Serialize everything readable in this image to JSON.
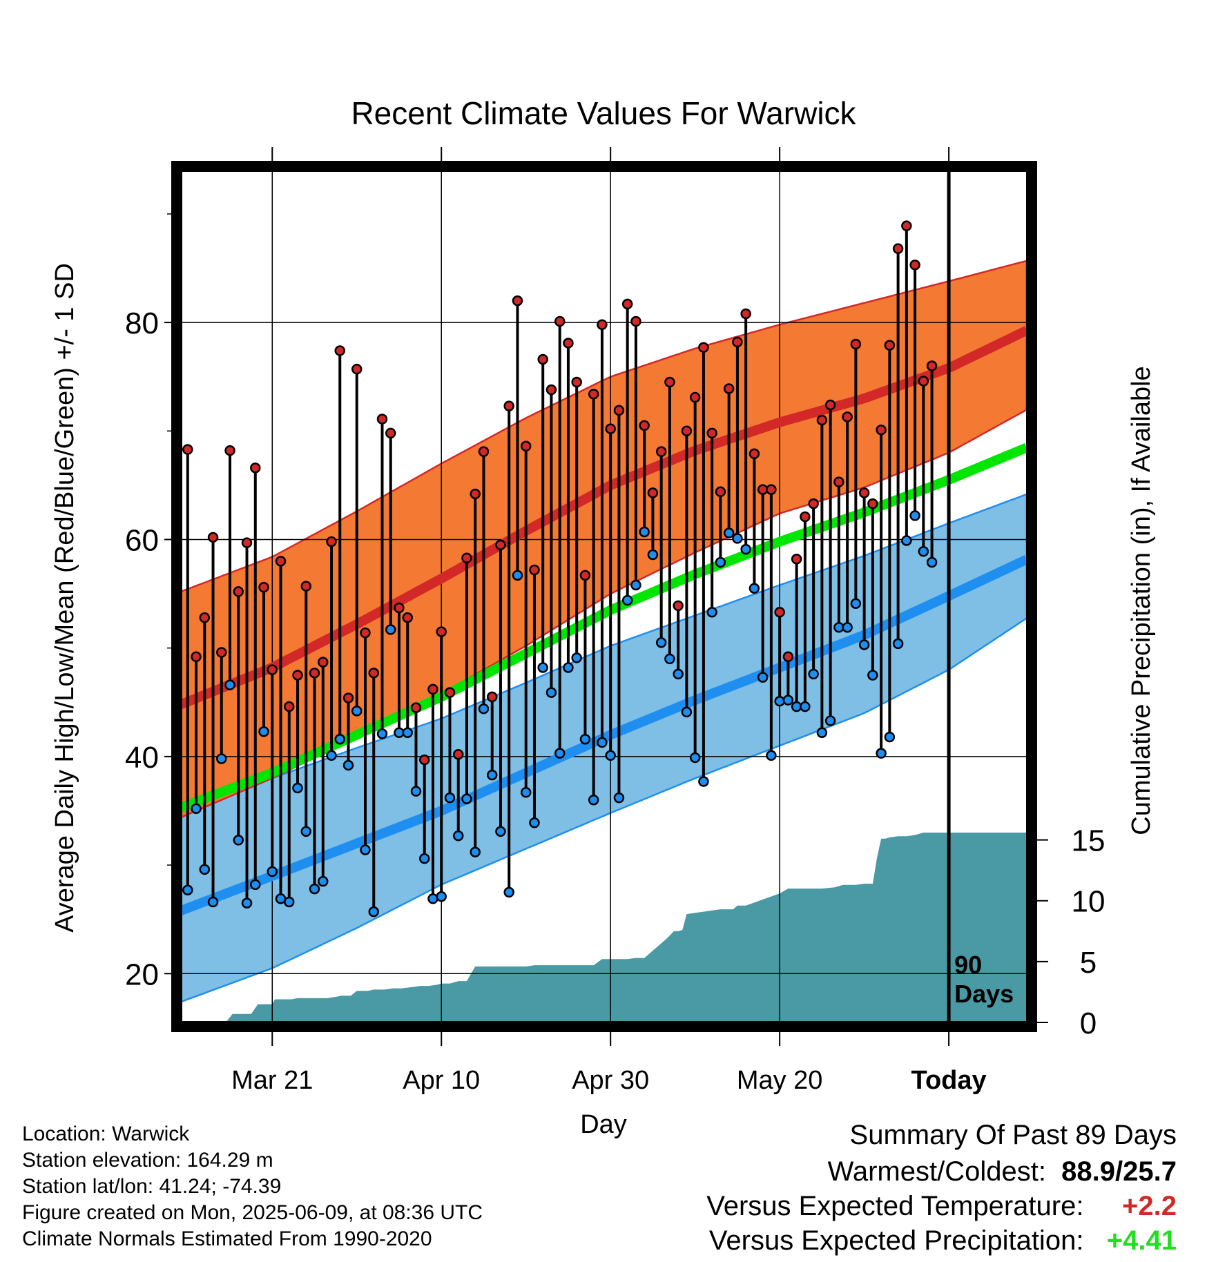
{
  "chart_data": {
    "type": "line",
    "title": "Recent Climate Values For Warwick",
    "xlabel": "Day",
    "ylabel": "Average Daily High/Low/Mean (Red/Blue/Green) +/- 1 SD",
    "y2label": "Cumulative Precipitation (in), If Available",
    "xticks": [
      {
        "day": 10,
        "label": "Mar 21"
      },
      {
        "day": 30,
        "label": "Apr 10"
      },
      {
        "day": 50,
        "label": "Apr 30"
      },
      {
        "day": 70,
        "label": "May 20"
      },
      {
        "day": 90,
        "label": "Today"
      }
    ],
    "day_axis_start": "2025-03-11",
    "xlim": [
      -0.8,
      99.3
    ],
    "ylim": [
      15.5,
      94
    ],
    "yticks": [
      20,
      40,
      60,
      80
    ],
    "y2lim": [
      0,
      70
    ],
    "y2ticks": [
      0,
      5,
      10,
      15
    ],
    "marker_label": "90 Days",
    "normals": {
      "day": [
        -0.8,
        10,
        20,
        30,
        40,
        50,
        60,
        70,
        80,
        90,
        99.3
      ],
      "high_mean": [
        44.8,
        48.2,
        52.2,
        56.4,
        60.8,
        65.0,
        68.2,
        70.8,
        73.0,
        75.8,
        79.3
      ],
      "high_upper": [
        55.2,
        58.4,
        62.6,
        67.0,
        71.2,
        75.0,
        77.6,
        79.8,
        81.8,
        83.8,
        85.7
      ],
      "high_lower": [
        34.4,
        38.0,
        41.8,
        45.8,
        50.2,
        55.0,
        58.8,
        62.4,
        64.8,
        68.0,
        72.0
      ],
      "mean": [
        35.3,
        38.5,
        42.0,
        45.5,
        49.5,
        53.5,
        56.8,
        59.8,
        62.5,
        65.5,
        68.5
      ],
      "low_mean": [
        25.8,
        29.0,
        32.0,
        35.0,
        38.5,
        42.0,
        45.2,
        48.2,
        51.2,
        54.8,
        58.2
      ],
      "low_upper": [
        35.5,
        38.0,
        40.8,
        43.5,
        46.8,
        50.2,
        53.0,
        55.8,
        58.5,
        61.5,
        64.2
      ],
      "low_lower": [
        17.4,
        20.5,
        24.2,
        28.2,
        31.5,
        34.8,
        38.0,
        41.0,
        44.0,
        48.0,
        52.8
      ]
    },
    "daily": {
      "day": [
        0,
        1,
        2,
        3,
        4,
        5,
        6,
        7,
        8,
        9,
        10,
        11,
        12,
        13,
        14,
        15,
        16,
        17,
        18,
        19,
        20,
        21,
        22,
        23,
        24,
        25,
        26,
        27,
        28,
        29,
        30,
        31,
        32,
        33,
        34,
        35,
        36,
        37,
        38,
        39,
        40,
        41,
        42,
        43,
        44,
        45,
        46,
        47,
        48,
        49,
        50,
        51,
        52,
        53,
        54,
        55,
        56,
        57,
        58,
        59,
        60,
        61,
        62,
        63,
        64,
        65,
        66,
        67,
        68,
        69,
        70,
        71,
        72,
        73,
        74,
        75,
        76,
        77,
        78,
        79,
        80,
        81,
        82,
        83,
        84,
        85,
        86,
        87,
        88,
        89
      ],
      "high": [
        68.3,
        49.2,
        52.8,
        60.2,
        49.6,
        68.2,
        55.2,
        59.7,
        66.6,
        55.6,
        48.0,
        58.0,
        44.6,
        47.5,
        55.7,
        47.7,
        48.7,
        59.8,
        77.4,
        45.4,
        75.7,
        51.4,
        47.7,
        71.1,
        69.8,
        53.7,
        52.8,
        44.5,
        39.7,
        46.2,
        51.5,
        45.9,
        40.2,
        58.3,
        64.2,
        68.1,
        45.5,
        59.5,
        72.3,
        82.0,
        68.6,
        57.2,
        76.6,
        73.8,
        80.1,
        78.1,
        74.5,
        56.7,
        73.4,
        79.8,
        70.2,
        71.9,
        81.7,
        80.1,
        70.5,
        64.3,
        68.1,
        74.5,
        53.9,
        70.0,
        73.1,
        77.7,
        69.8,
        64.4,
        73.9,
        78.2,
        80.8,
        67.9,
        64.6,
        64.6,
        53.3,
        49.2,
        58.2,
        62.1,
        63.3,
        71.0,
        72.4,
        65.3,
        71.3,
        78.0,
        64.3,
        63.3,
        70.1,
        77.9,
        86.8,
        88.9,
        85.3,
        74.6,
        76.0,
        null
      ],
      "low": [
        27.7,
        35.2,
        29.6,
        26.6,
        39.8,
        46.6,
        32.3,
        26.5,
        28.2,
        42.3,
        29.4,
        26.9,
        26.6,
        37.1,
        33.1,
        27.8,
        28.5,
        40.1,
        41.6,
        39.2,
        44.2,
        31.4,
        25.7,
        42.1,
        51.7,
        42.2,
        42.2,
        36.8,
        30.6,
        26.9,
        27.1,
        36.2,
        32.7,
        36.1,
        31.2,
        44.4,
        38.3,
        33.1,
        27.5,
        56.7,
        36.7,
        33.9,
        48.2,
        45.9,
        40.3,
        48.2,
        49.1,
        41.6,
        36.0,
        41.3,
        40.1,
        36.2,
        54.4,
        55.8,
        60.7,
        58.6,
        50.5,
        49.0,
        47.6,
        44.1,
        39.9,
        37.7,
        53.3,
        57.9,
        60.6,
        60.1,
        59.1,
        55.5,
        47.3,
        40.1,
        45.1,
        45.2,
        44.6,
        44.6,
        47.6,
        42.2,
        43.3,
        51.9,
        51.9,
        54.1,
        50.3,
        47.5,
        40.3,
        41.8,
        50.4,
        59.9,
        62.2,
        58.9,
        57.9,
        null
      ]
    },
    "precip": {
      "day": [
        4.5,
        5.3,
        6.0,
        6.6,
        7.5,
        8.3,
        9.0,
        10.0,
        10.3,
        11.3,
        12.3,
        13.0,
        14.5,
        15.5,
        16.5,
        17.5,
        18.2,
        19.3,
        20.0,
        20.8,
        21.3,
        22.0,
        23.3,
        24.3,
        25.3,
        26.5,
        27.5,
        28.5,
        29.5,
        30.0,
        31.0,
        32.0,
        33.0,
        34.0,
        40.0,
        41.0,
        48.0,
        49.0,
        52.0,
        53.0,
        54.0,
        55.0,
        56.0,
        56.8,
        57.5,
        58.0,
        58.5,
        59.0,
        60.0,
        61.0,
        62.0,
        63.0,
        64.5,
        65.0,
        66.0,
        70.0,
        71.0,
        72.0,
        73.0,
        74.0,
        75.0,
        76.5,
        77.5,
        78.5,
        79.0,
        80.0,
        81.0,
        81.5,
        82.0,
        82.5,
        83.0,
        84.0,
        85.0,
        86.0,
        87.0,
        87.5,
        88.0,
        89.0,
        99.3
      ],
      "cum": [
        0,
        0.7,
        0.7,
        0.7,
        0.7,
        1.5,
        1.5,
        1.5,
        1.9,
        1.9,
        1.9,
        2.0,
        2.0,
        2.0,
        2.0,
        2.1,
        2.2,
        2.2,
        2.6,
        2.6,
        2.6,
        2.7,
        2.7,
        2.8,
        2.8,
        2.9,
        3.0,
        3.0,
        3.1,
        3.2,
        3.2,
        3.4,
        3.4,
        4.6,
        4.6,
        4.7,
        4.7,
        5.2,
        5.2,
        5.3,
        5.3,
        5.9,
        6.5,
        7.0,
        7.5,
        7.5,
        7.6,
        8.9,
        9.0,
        9.1,
        9.2,
        9.3,
        9.3,
        9.6,
        9.6,
        10.6,
        11.0,
        11.0,
        11.0,
        11.0,
        11.0,
        11.1,
        11.3,
        11.3,
        11.3,
        11.4,
        11.4,
        13.5,
        15.1,
        15.1,
        15.2,
        15.3,
        15.3,
        15.4,
        15.6,
        15.6,
        15.6,
        15.6,
        15.6
      ]
    },
    "colors": {
      "high_band": "#f47a33",
      "high_mean": "#d32828",
      "low_band": "#7fbfe6",
      "low_mean": "#1e8ff0",
      "mean": "#00e600",
      "precip": "#4a9aa5",
      "high_dot": "#d32828",
      "low_dot": "#1e8ff0"
    },
    "grid": true
  },
  "info": {
    "location": "Location: Warwick",
    "elevation": "Station elevation: 164.29 m",
    "latlon": "Station lat/lon: 41.24; -74.39",
    "created": "Figure created on Mon, 2025-06-09, at 08:36 UTC",
    "normals_source": "Climate Normals Estimated From 1990-2020"
  },
  "summary": {
    "title": "Summary Of Past 89 Days",
    "warmest_label": "Warmest/Coldest:",
    "warmest_value": "88.9/25.7",
    "temp_label": "Versus Expected Temperature:",
    "temp_value": "+2.2",
    "temp_color": "#d32828",
    "precip_label": "Versus Expected Precipitation:",
    "precip_value": "+4.41",
    "precip_color": "#22dd22"
  }
}
